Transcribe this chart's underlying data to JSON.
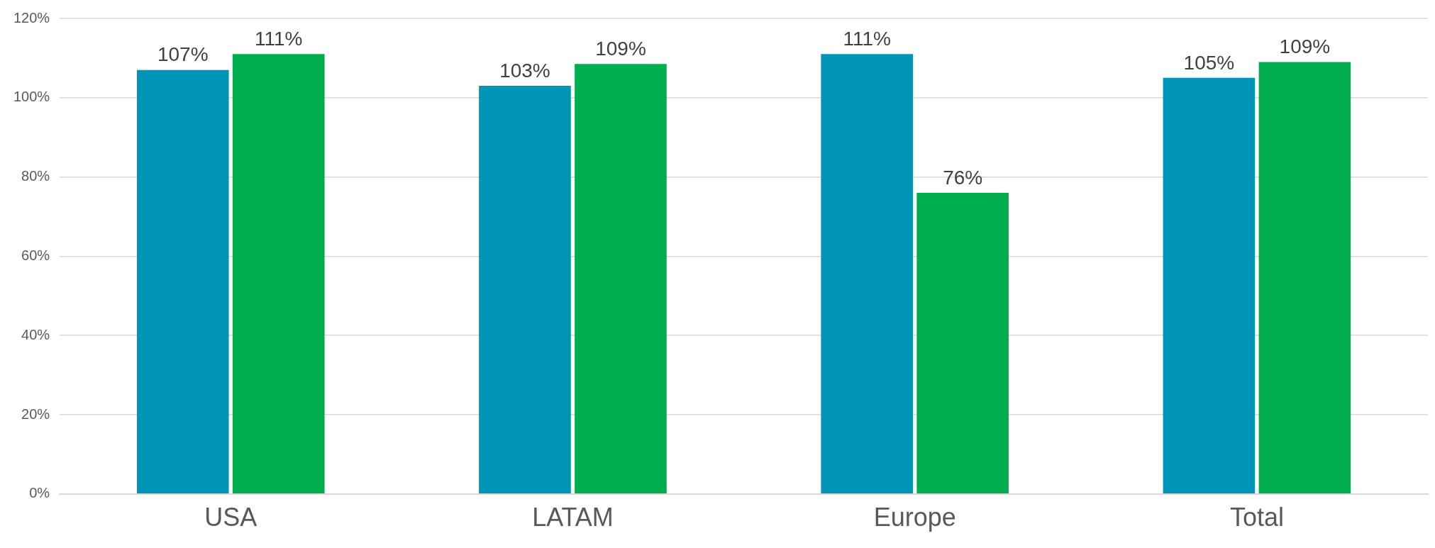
{
  "chart_data": {
    "type": "bar",
    "categories": [
      "USA",
      "LATAM",
      "Europe",
      "Total"
    ],
    "series": [
      {
        "color": "#0095b6",
        "values": [
          107,
          103,
          111,
          105
        ],
        "value_labels": [
          "107%",
          "103%",
          "111%",
          "105%"
        ]
      },
      {
        "color": "#00ae4f",
        "values": [
          111,
          108.5,
          76,
          109
        ],
        "value_labels": [
          "111%",
          "109%",
          "76%",
          "109%"
        ]
      }
    ],
    "ylim": [
      0,
      120
    ],
    "yticks": [
      {
        "value": 0,
        "label": "0%"
      },
      {
        "value": 20,
        "label": "20%"
      },
      {
        "value": 40,
        "label": "40%"
      },
      {
        "value": 60,
        "label": "60%"
      },
      {
        "value": 80,
        "label": "80%"
      },
      {
        "value": 100,
        "label": "100%"
      },
      {
        "value": 120,
        "label": "120%"
      }
    ],
    "grid": "y",
    "legend": false
  }
}
